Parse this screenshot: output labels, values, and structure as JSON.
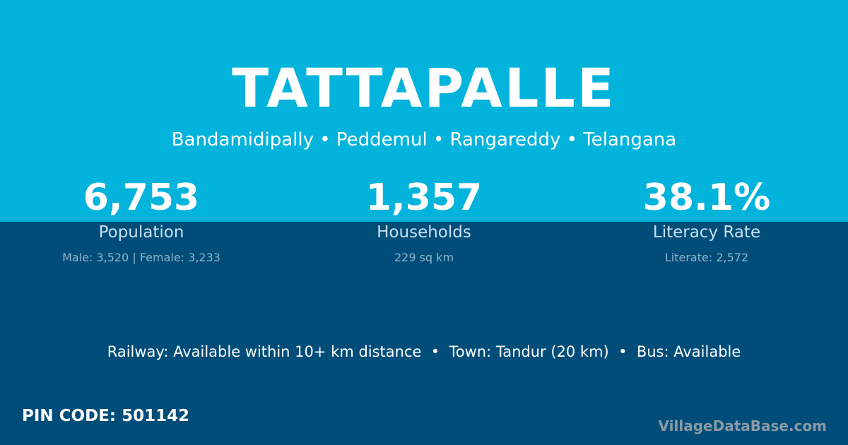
{
  "colors": {
    "top_bg": "#02b3dc",
    "bottom_bg": "#014d79"
  },
  "village": "TATTAPALLE",
  "location": "Bandamidipally • Peddemul • Rangareddy • Telangana",
  "stats": [
    {
      "value": "6,753",
      "label": "Population",
      "detail": "Male: 3,520 | Female: 3,233"
    },
    {
      "value": "1,357",
      "label": "Households",
      "detail": "229 sq km"
    },
    {
      "value": "38.1%",
      "label": "Literacy Rate",
      "detail": "Literate: 2,572"
    }
  ],
  "connectivity": "Railway: Available within 10+ km distance  •  Town: Tandur (20 km)  •  Bus: Available",
  "pin_code": "PIN CODE: 501142",
  "brand": "VillageDataBase.com"
}
